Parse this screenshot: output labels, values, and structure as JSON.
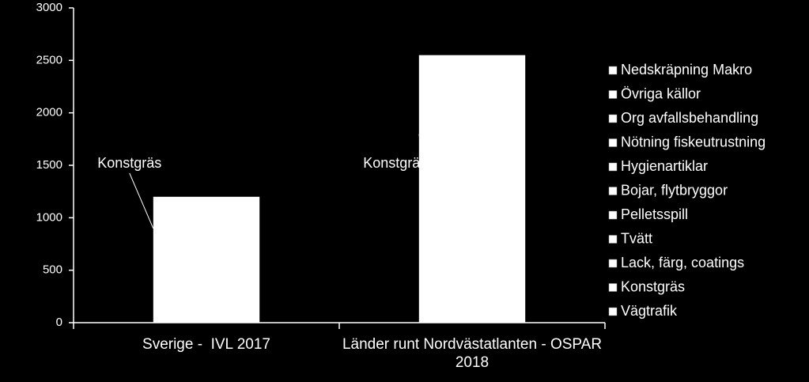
{
  "chart_data": {
    "type": "bar",
    "categories": [
      "Sverige -  IVL 2017",
      "Länder runt Nordvästatlanten - OSPAR 2018"
    ],
    "values": [
      1200,
      2550
    ],
    "color": "#ffffff",
    "ylim": [
      0,
      3000
    ],
    "yticks": [
      0,
      500,
      1000,
      1500,
      2000,
      2500,
      3000
    ],
    "grid": false,
    "annotations": [
      "Konstgräs",
      "Konstgräs"
    ],
    "legend_position": "right",
    "legend": [
      "Nedskräpning Makro",
      "Övriga källor",
      "Org avfallsbehandling",
      "Nötning fiskeutrustning",
      "Hygienartiklar",
      "Bojar, flytbryggor",
      "Pelletsspill",
      "Tvätt",
      "Lack, färg, coatings",
      "Konstgräs",
      "Vägtrafik"
    ]
  }
}
